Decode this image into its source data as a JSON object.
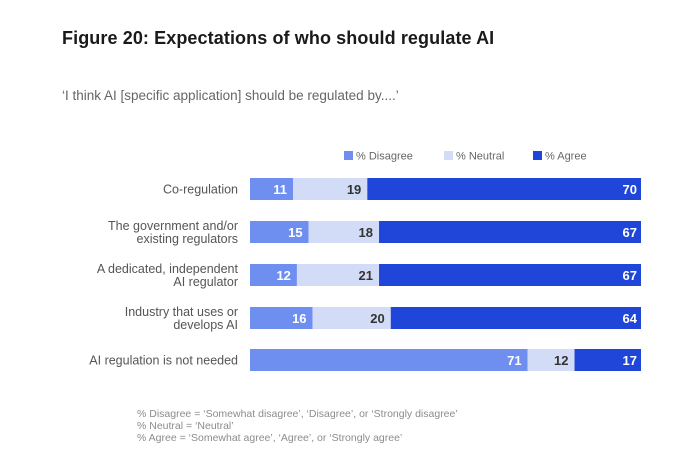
{
  "header": {
    "title": "Figure 20: Expectations of who should regulate AI",
    "subtitle": "‘I think AI [specific application] should be regulated by....’"
  },
  "footnotes": [
    "% Disagree = ‘Somewhat disagree’, ‘Disagree’, or ‘Strongly disagree’",
    "% Neutral = ‘Neutral’",
    "% Agree = ‘Somewhat agree’, ‘Agree’, or ‘Strongly agree’"
  ],
  "chart_data": {
    "type": "bar",
    "orientation": "horizontal",
    "stacked": true,
    "categories": [
      [
        "Co-regulation"
      ],
      [
        "The government and/or",
        "existing regulators"
      ],
      [
        "A dedicated, independent",
        "AI regulator"
      ],
      [
        "Industry that uses or",
        "develops AI"
      ],
      [
        "AI regulation is not needed"
      ]
    ],
    "series": [
      {
        "name": "% Disagree",
        "values": [
          11,
          15,
          12,
          16,
          71
        ],
        "color": "#6f8ff0",
        "label_color": "#ffffff"
      },
      {
        "name": "% Neutral",
        "values": [
          19,
          18,
          21,
          20,
          12
        ],
        "color": "#d3dcf6",
        "label_color": "#333333"
      },
      {
        "name": "% Agree",
        "values": [
          70,
          67,
          67,
          64,
          17
        ],
        "color": "#1f46d9",
        "label_color": "#ffffff"
      }
    ],
    "xlim": [
      0,
      100
    ],
    "legend": "top",
    "grid": false
  }
}
